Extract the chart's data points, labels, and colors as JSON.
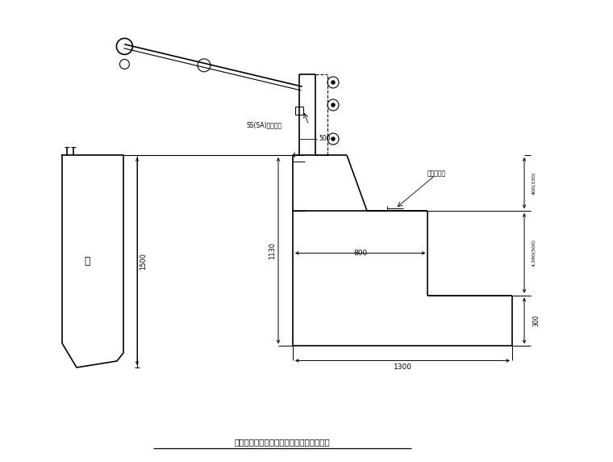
{
  "bg_color": "#ffffff",
  "line_color": "#000000",
  "title": "拦墙上为人行道栏杆和防撞栏杆结构示意图",
  "label_1500": "1500",
  "label_1130": "1130",
  "label_1300": "1300",
  "label_800": "800",
  "label_300": "300",
  "label_400": "400(330)",
  "label_500_inner": "4.380(500)",
  "label_500": "500",
  "label_lan": "拦",
  "label_ss_sa": "SS(SA)级防撞栏",
  "label_chelane": "车行道标高"
}
